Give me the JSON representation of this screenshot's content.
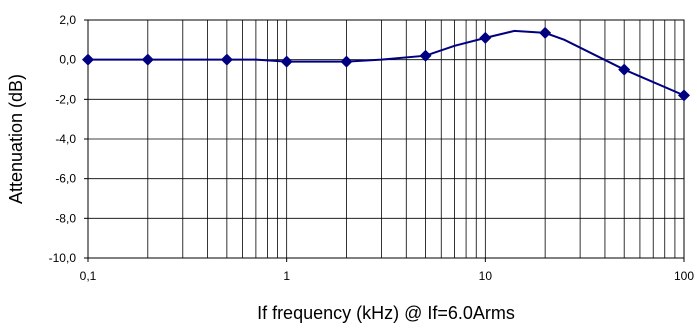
{
  "chart_data": {
    "type": "line",
    "xlabel": "If frequency (kHz) @ If=6.0Arms",
    "ylabel": "Attenuation (dB)",
    "x_scale": "log",
    "xlim": [
      0.1,
      100
    ],
    "ylim": [
      -10,
      2
    ],
    "grid": true,
    "x_ticks": [
      "0,1",
      "1",
      "10",
      "100"
    ],
    "y_ticks": [
      "2,0",
      "0,0",
      "-2,0",
      "-4,0",
      "-6,0",
      "-8,0",
      "-10,0"
    ],
    "series": [
      {
        "color": "#000080",
        "marker": "diamond",
        "x": [
          0.1,
          0.2,
          0.5,
          0.7,
          1,
          2,
          3,
          5,
          7,
          10,
          14,
          20,
          25,
          50,
          100
        ],
        "values": [
          0.0,
          0.0,
          0.0,
          0.0,
          -0.1,
          -0.1,
          0.0,
          0.2,
          0.7,
          1.1,
          1.45,
          1.35,
          1.0,
          -0.5,
          -1.8
        ],
        "markers_at": [
          0.1,
          0.2,
          0.5,
          1,
          2,
          5,
          10,
          20,
          50,
          100
        ]
      }
    ]
  }
}
